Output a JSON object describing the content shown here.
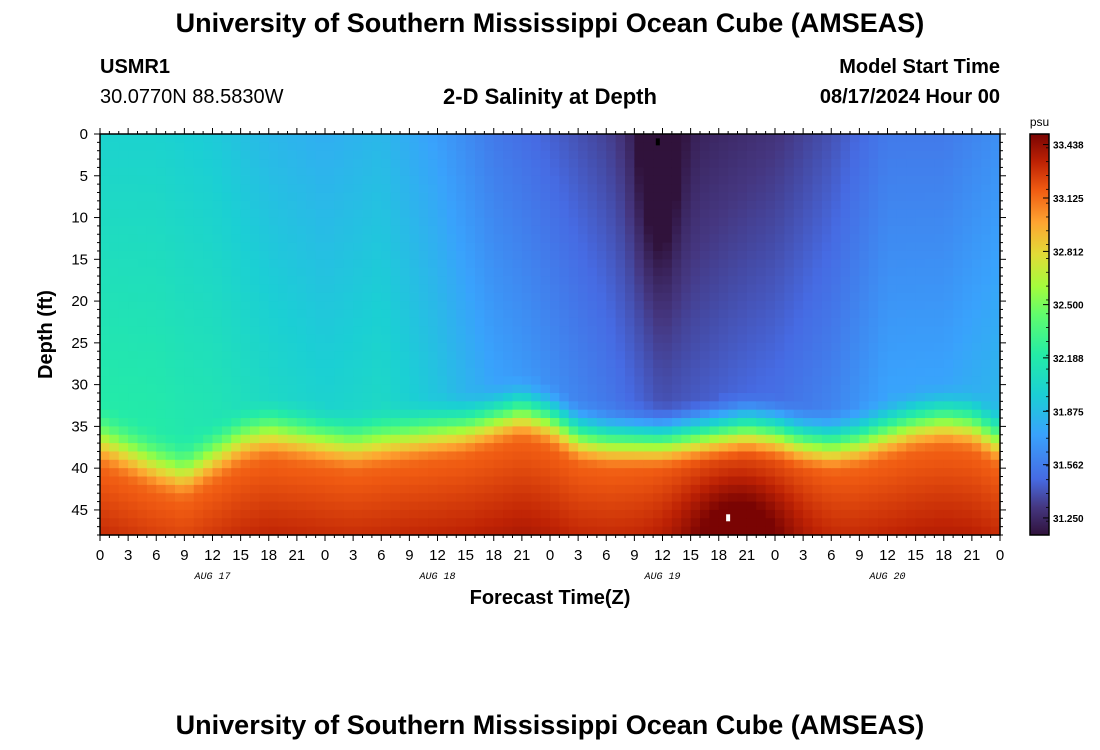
{
  "header": {
    "title": "University of Southern Mississippi Ocean Cube (AMSEAS)",
    "station_id": "USMR1",
    "station_coords": "30.0770N  88.5830W",
    "model_start_label": "Model Start Time",
    "model_start_value": "08/17/2024 Hour 00"
  },
  "footer": {
    "title": "University of Southern Mississippi Ocean Cube (AMSEAS)"
  },
  "chart_data": {
    "type": "heatmap",
    "title": "2-D Salinity at Depth",
    "xlabel": "Forecast Time(Z)",
    "ylabel": "Depth (ft)",
    "x_range_hours": [
      0,
      96
    ],
    "y_range_ft": [
      0,
      48
    ],
    "x_ticks": [
      {
        "hour": 0,
        "label": "0"
      },
      {
        "hour": 3,
        "label": "3"
      },
      {
        "hour": 6,
        "label": "6"
      },
      {
        "hour": 9,
        "label": "9"
      },
      {
        "hour": 12,
        "label": "12"
      },
      {
        "hour": 15,
        "label": "15"
      },
      {
        "hour": 18,
        "label": "18"
      },
      {
        "hour": 21,
        "label": "21"
      },
      {
        "hour": 24,
        "label": "0"
      },
      {
        "hour": 27,
        "label": "3"
      },
      {
        "hour": 30,
        "label": "6"
      },
      {
        "hour": 33,
        "label": "9"
      },
      {
        "hour": 36,
        "label": "12"
      },
      {
        "hour": 39,
        "label": "15"
      },
      {
        "hour": 42,
        "label": "18"
      },
      {
        "hour": 45,
        "label": "21"
      },
      {
        "hour": 48,
        "label": "0"
      },
      {
        "hour": 51,
        "label": "3"
      },
      {
        "hour": 54,
        "label": "6"
      },
      {
        "hour": 57,
        "label": "9"
      },
      {
        "hour": 60,
        "label": "12"
      },
      {
        "hour": 63,
        "label": "15"
      },
      {
        "hour": 66,
        "label": "18"
      },
      {
        "hour": 69,
        "label": "21"
      },
      {
        "hour": 72,
        "label": "0"
      },
      {
        "hour": 75,
        "label": "3"
      },
      {
        "hour": 78,
        "label": "6"
      },
      {
        "hour": 81,
        "label": "9"
      },
      {
        "hour": 84,
        "label": "12"
      },
      {
        "hour": 87,
        "label": "15"
      },
      {
        "hour": 90,
        "label": "18"
      },
      {
        "hour": 93,
        "label": "21"
      },
      {
        "hour": 96,
        "label": "0"
      }
    ],
    "day_labels": [
      {
        "hour": 12,
        "label": "AUG 17"
      },
      {
        "hour": 36,
        "label": "AUG 18"
      },
      {
        "hour": 60,
        "label": "AUG 19"
      },
      {
        "hour": 84,
        "label": "AUG 20"
      }
    ],
    "y_ticks": [
      0,
      5,
      10,
      15,
      20,
      25,
      30,
      35,
      40,
      45
    ],
    "colorbar": {
      "unit": "psu",
      "range": [
        31.15,
        33.5
      ],
      "ticks": [
        "33.438",
        "33.125",
        "32.812",
        "32.500",
        "32.188",
        "31.875",
        "31.562",
        "31.250"
      ]
    },
    "halocline": [
      {
        "hour": 0,
        "depth_ft": 36
      },
      {
        "hour": 3,
        "depth_ft": 37.5
      },
      {
        "hour": 6,
        "depth_ft": 39
      },
      {
        "hour": 9,
        "depth_ft": 40
      },
      {
        "hour": 12,
        "depth_ft": 38
      },
      {
        "hour": 15,
        "depth_ft": 36
      },
      {
        "hour": 18,
        "depth_ft": 35
      },
      {
        "hour": 21,
        "depth_ft": 35.5
      },
      {
        "hour": 24,
        "depth_ft": 36
      },
      {
        "hour": 27,
        "depth_ft": 36.5
      },
      {
        "hour": 30,
        "depth_ft": 36
      },
      {
        "hour": 33,
        "depth_ft": 35.5
      },
      {
        "hour": 36,
        "depth_ft": 35
      },
      {
        "hour": 39,
        "depth_ft": 34.5
      },
      {
        "hour": 42,
        "depth_ft": 33.5
      },
      {
        "hour": 45,
        "depth_ft": 32.5
      },
      {
        "hour": 48,
        "depth_ft": 33.5
      },
      {
        "hour": 51,
        "depth_ft": 35.5
      },
      {
        "hour": 54,
        "depth_ft": 36
      },
      {
        "hour": 57,
        "depth_ft": 36
      },
      {
        "hour": 60,
        "depth_ft": 36
      },
      {
        "hour": 63,
        "depth_ft": 35.5
      },
      {
        "hour": 66,
        "depth_ft": 35
      },
      {
        "hour": 69,
        "depth_ft": 34.5
      },
      {
        "hour": 72,
        "depth_ft": 35
      },
      {
        "hour": 75,
        "depth_ft": 36
      },
      {
        "hour": 78,
        "depth_ft": 36.5
      },
      {
        "hour": 81,
        "depth_ft": 36
      },
      {
        "hour": 84,
        "depth_ft": 35
      },
      {
        "hour": 87,
        "depth_ft": 34
      },
      {
        "hour": 90,
        "depth_ft": 33.5
      },
      {
        "hour": 93,
        "depth_ft": 34
      },
      {
        "hour": 96,
        "depth_ft": 36
      }
    ],
    "surface_salinity_psu": [
      {
        "hour": 0,
        "psu": 32.0
      },
      {
        "hour": 6,
        "psu": 32.0
      },
      {
        "hour": 12,
        "psu": 31.95
      },
      {
        "hour": 18,
        "psu": 31.85
      },
      {
        "hour": 24,
        "psu": 31.8
      },
      {
        "hour": 30,
        "psu": 31.85
      },
      {
        "hour": 36,
        "psu": 31.72
      },
      {
        "hour": 42,
        "psu": 31.55
      },
      {
        "hour": 48,
        "psu": 31.45
      },
      {
        "hour": 54,
        "psu": 31.35
      },
      {
        "hour": 60,
        "psu": 31.2
      },
      {
        "hour": 66,
        "psu": 31.25
      },
      {
        "hour": 72,
        "psu": 31.3
      },
      {
        "hour": 78,
        "psu": 31.4
      },
      {
        "hour": 84,
        "psu": 31.55
      },
      {
        "hour": 90,
        "psu": 31.55
      },
      {
        "hour": 96,
        "psu": 31.65
      }
    ],
    "markers": [
      {
        "name": "min",
        "hour": 59.5,
        "depth_ft": 1
      },
      {
        "name": "max",
        "hour": 67,
        "depth_ft": 46
      }
    ]
  }
}
